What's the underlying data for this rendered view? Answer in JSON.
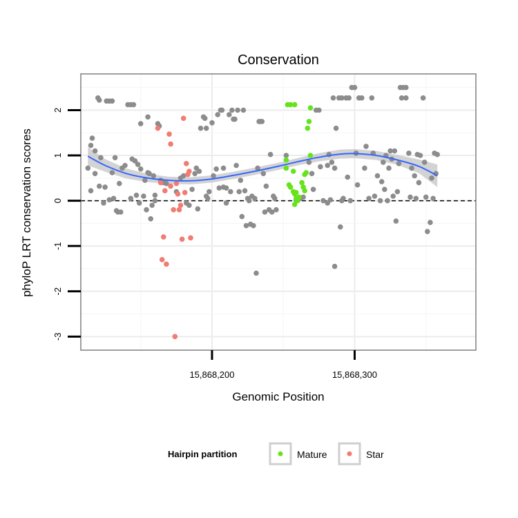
{
  "chart_data": {
    "type": "scatter",
    "title": "Conservation",
    "xlabel": "Genomic Position",
    "ylabel": "phyloP LRT conservation scores",
    "xlim": [
      15868108,
      15868385
    ],
    "ylim": [
      -3.3,
      2.8
    ],
    "x_ticks": [
      15868200,
      15868300
    ],
    "x_tick_labels": [
      "15,868,200",
      "15,868,300"
    ],
    "y_ticks": [
      -3,
      -2,
      -1,
      0,
      1,
      2
    ],
    "y_tick_labels": [
      "-3",
      "-2",
      "-1",
      "0",
      "1",
      "2"
    ],
    "grid": true,
    "reference_line_y": 0,
    "colors": {
      "other": "#8c8c8c",
      "Mature": "#66e31a",
      "Star": "#f07c72",
      "smooth": "#3366ff",
      "ribbon": "#c8c8c8"
    },
    "legend": {
      "title": "Hairpin partition",
      "placement": "bottom",
      "entries": [
        "Mature",
        "Star"
      ]
    },
    "series": [
      {
        "group": "other",
        "points": [
          [
            15868113,
            0.72
          ],
          [
            15868115,
            1.22
          ],
          [
            15868116,
            1.38
          ],
          [
            15868115,
            0.22
          ],
          [
            15868118,
            1.1
          ],
          [
            15868118,
            0.6
          ],
          [
            15868120,
            2.27
          ],
          [
            15868121,
            2.22
          ],
          [
            15868122,
            0.95
          ],
          [
            15868121,
            0.32
          ],
          [
            15868124,
            -0.05
          ],
          [
            15868125,
            0.3
          ],
          [
            15868126,
            2.2
          ],
          [
            15868128,
            2.2
          ],
          [
            15868130,
            2.2
          ],
          [
            15868128,
            0.02
          ],
          [
            15868130,
            0.62
          ],
          [
            15868131,
            0.05
          ],
          [
            15868132,
            0.95
          ],
          [
            15868133,
            -0.22
          ],
          [
            15868134,
            -0.25
          ],
          [
            15868136,
            -0.25
          ],
          [
            15868135,
            0.38
          ],
          [
            15868137,
            0.72
          ],
          [
            15868139,
            0.78
          ],
          [
            15868141,
            2.12
          ],
          [
            15868143,
            2.12
          ],
          [
            15868145,
            2.12
          ],
          [
            15868143,
            0.05
          ],
          [
            15868144,
            0.92
          ],
          [
            15868146,
            0.88
          ],
          [
            15868147,
            0.12
          ],
          [
            15868148,
            0.8
          ],
          [
            15868149,
            -0.05
          ],
          [
            15868150,
            0.7
          ],
          [
            15868150,
            1.7
          ],
          [
            15868152,
            0.1
          ],
          [
            15868153,
            0.45
          ],
          [
            15868154,
            -0.2
          ],
          [
            15868155,
            1.85
          ],
          [
            15868155,
            0.62
          ],
          [
            15868156,
            0.6
          ],
          [
            15868157,
            -0.4
          ],
          [
            15868158,
            -0.1
          ],
          [
            15868159,
            0.55
          ],
          [
            15868160,
            0.0
          ],
          [
            15868160,
            0.12
          ],
          [
            15868162,
            1.7
          ],
          [
            15868163,
            1.65
          ],
          [
            15868164,
            0.45
          ],
          [
            15868166,
            0.4
          ],
          [
            15868168,
            0.38
          ],
          [
            15868175,
            0.2
          ],
          [
            15868178,
            0.5
          ],
          [
            15868180,
            0.55
          ],
          [
            15868182,
            -0.05
          ],
          [
            15868184,
            -0.1
          ],
          [
            15868186,
            0.25
          ],
          [
            15868188,
            0.6
          ],
          [
            15868189,
            0.72
          ],
          [
            15868190,
            -0.18
          ],
          [
            15868191,
            0.65
          ],
          [
            15868192,
            1.6
          ],
          [
            15868194,
            1.85
          ],
          [
            15868195,
            1.82
          ],
          [
            15868196,
            0.1
          ],
          [
            15868196,
            1.6
          ],
          [
            15868197,
            0.05
          ],
          [
            15868198,
            0.2
          ],
          [
            15868200,
            1.72
          ],
          [
            15868201,
            0.55
          ],
          [
            15868203,
            0.7
          ],
          [
            15868204,
            1.9
          ],
          [
            15868205,
            0.28
          ],
          [
            15868206,
            2.0
          ],
          [
            15868207,
            2.0
          ],
          [
            15868208,
            0.72
          ],
          [
            15868208,
            0.3
          ],
          [
            15868210,
            -0.05
          ],
          [
            15868210,
            0.28
          ],
          [
            15868212,
            1.9
          ],
          [
            15868213,
            0.2
          ],
          [
            15868214,
            2.0
          ],
          [
            15868215,
            1.8
          ],
          [
            15868216,
            1.8
          ],
          [
            15868217,
            0.78
          ],
          [
            15868218,
            2.0
          ],
          [
            15868219,
            0.2
          ],
          [
            15868220,
            0.45
          ],
          [
            15868221,
            -0.35
          ],
          [
            15868222,
            2.0
          ],
          [
            15868223,
            0.22
          ],
          [
            15868224,
            -0.55
          ],
          [
            15868225,
            0.05
          ],
          [
            15868226,
            0.0
          ],
          [
            15868227,
            -0.52
          ],
          [
            15868228,
            0.1
          ],
          [
            15868229,
            -0.55
          ],
          [
            15868230,
            0.05
          ],
          [
            15868231,
            -1.6
          ],
          [
            15868232,
            0.72
          ],
          [
            15868233,
            1.75
          ],
          [
            15868234,
            1.75
          ],
          [
            15868235,
            1.75
          ],
          [
            15868236,
            0.6
          ],
          [
            15868237,
            -0.25
          ],
          [
            15868238,
            0.32
          ],
          [
            15868240,
            -0.2
          ],
          [
            15868241,
            1.02
          ],
          [
            15868242,
            -0.25
          ],
          [
            15868243,
            0.1
          ],
          [
            15868244,
            0.05
          ],
          [
            15868245,
            -0.2
          ],
          [
            15868252,
            1.0
          ],
          [
            15868259,
            0.02
          ],
          [
            15868262,
            0.05
          ],
          [
            15868264,
            0.08
          ],
          [
            15868268,
            0.85
          ],
          [
            15868270,
            0.6
          ],
          [
            15868271,
            0.25
          ],
          [
            15868273,
            2.0
          ],
          [
            15868275,
            2.0
          ],
          [
            15868276,
            0.75
          ],
          [
            15868278,
            0.0
          ],
          [
            15868281,
            -0.05
          ],
          [
            15868281,
            0.78
          ],
          [
            15868282,
            1.02
          ],
          [
            15868283,
            0.02
          ],
          [
            15868284,
            0.85
          ],
          [
            15868285,
            2.27
          ],
          [
            15868286,
            0.72
          ],
          [
            15868287,
            1.6
          ],
          [
            15868286,
            -1.45
          ],
          [
            15868289,
            2.27
          ],
          [
            15868290,
            -0.58
          ],
          [
            15868291,
            2.27
          ],
          [
            15868291,
            0.0
          ],
          [
            15868292,
            0.05
          ],
          [
            15868294,
            2.27
          ],
          [
            15868295,
            0.52
          ],
          [
            15868296,
            2.27
          ],
          [
            15868297,
            0.0
          ],
          [
            15868298,
            2.5
          ],
          [
            15868300,
            2.5
          ],
          [
            15868301,
            1.05
          ],
          [
            15868302,
            0.35
          ],
          [
            15868303,
            2.27
          ],
          [
            15868305,
            2.27
          ],
          [
            15868307,
            0.72
          ],
          [
            15868308,
            1.2
          ],
          [
            15868310,
            0.05
          ],
          [
            15868312,
            2.27
          ],
          [
            15868313,
            1.05
          ],
          [
            15868314,
            0.1
          ],
          [
            15868316,
            0.55
          ],
          [
            15868318,
            0.0
          ],
          [
            15868319,
            0.42
          ],
          [
            15868320,
            0.85
          ],
          [
            15868321,
            0.25
          ],
          [
            15868322,
            1.0
          ],
          [
            15868323,
            0.0
          ],
          [
            15868324,
            0.72
          ],
          [
            15868325,
            1.1
          ],
          [
            15868326,
            0.92
          ],
          [
            15868327,
            0.1
          ],
          [
            15868328,
            1.1
          ],
          [
            15868329,
            -0.45
          ],
          [
            15868330,
            0.2
          ],
          [
            15868331,
            0.82
          ],
          [
            15868332,
            2.5
          ],
          [
            15868334,
            2.5
          ],
          [
            15868336,
            2.5
          ],
          [
            15868333,
            2.27
          ],
          [
            15868336,
            2.27
          ],
          [
            15868338,
            1.05
          ],
          [
            15868339,
            0.08
          ],
          [
            15868340,
            0.72
          ],
          [
            15868342,
            0.55
          ],
          [
            15868343,
            0.05
          ],
          [
            15868344,
            1.02
          ],
          [
            15868345,
            0.4
          ],
          [
            15868346,
            1.0
          ],
          [
            15868348,
            2.27
          ],
          [
            15868349,
            0.85
          ],
          [
            15868350,
            0.08
          ],
          [
            15868351,
            -0.68
          ],
          [
            15868353,
            -0.48
          ],
          [
            15868354,
            0.5
          ],
          [
            15868356,
            1.05
          ],
          [
            15868357,
            0.6
          ],
          [
            15868355,
            0.05
          ],
          [
            15868358,
            1.02
          ]
        ]
      },
      {
        "group": "Mature",
        "points": [
          [
            15868253,
            2.12
          ],
          [
            15868255,
            2.12
          ],
          [
            15868258,
            2.12
          ],
          [
            15868252,
            0.9
          ],
          [
            15868252,
            0.72
          ],
          [
            15868254,
            0.35
          ],
          [
            15868255,
            0.3
          ],
          [
            15868257,
            0.65
          ],
          [
            15868257,
            0.2
          ],
          [
            15868258,
            0.15
          ],
          [
            15868258,
            -0.08
          ],
          [
            15868259,
            0.18
          ],
          [
            15868259,
            0.05
          ],
          [
            15868260,
            0.0
          ],
          [
            15868261,
            0.08
          ],
          [
            15868263,
            0.4
          ],
          [
            15868264,
            0.3
          ],
          [
            15868265,
            0.22
          ],
          [
            15868265,
            0.58
          ],
          [
            15868266,
            0.62
          ],
          [
            15868267,
            1.6
          ],
          [
            15868268,
            1.75
          ],
          [
            15868269,
            2.05
          ],
          [
            15868269,
            1.0
          ]
        ]
      },
      {
        "group": "Star",
        "points": [
          [
            15868162,
            1.6
          ],
          [
            15868164,
            0.4
          ],
          [
            15868166,
            -0.8
          ],
          [
            15868165,
            -1.3
          ],
          [
            15868167,
            0.22
          ],
          [
            15868168,
            -1.4
          ],
          [
            15868170,
            1.47
          ],
          [
            15868171,
            1.25
          ],
          [
            15868171,
            0.32
          ],
          [
            15868173,
            -0.2
          ],
          [
            15868174,
            -3.0
          ],
          [
            15868175,
            0.38
          ],
          [
            15868176,
            0.15
          ],
          [
            15868177,
            -0.2
          ],
          [
            15868178,
            -0.1
          ],
          [
            15868179,
            -0.85
          ],
          [
            15868180,
            1.82
          ],
          [
            15868181,
            0.18
          ],
          [
            15868182,
            0.82
          ],
          [
            15868183,
            0.58
          ],
          [
            15868184,
            0.65
          ],
          [
            15868185,
            -0.82
          ]
        ]
      }
    ],
    "smooth": {
      "method": "loess",
      "x": [
        15868113,
        15868125,
        15868140,
        15868155,
        15868170,
        15868185,
        15868200,
        15868215,
        15868230,
        15868245,
        15868260,
        15868275,
        15868290,
        15868300,
        15868315,
        15868330,
        15868345,
        15868358
      ],
      "y": [
        0.98,
        0.78,
        0.6,
        0.5,
        0.45,
        0.44,
        0.48,
        0.56,
        0.65,
        0.75,
        0.86,
        0.96,
        1.03,
        1.04,
        1.0,
        0.9,
        0.76,
        0.55
      ],
      "se": [
        0.2,
        0.14,
        0.11,
        0.09,
        0.08,
        0.08,
        0.08,
        0.08,
        0.08,
        0.08,
        0.08,
        0.09,
        0.1,
        0.1,
        0.1,
        0.11,
        0.15,
        0.25
      ]
    }
  }
}
